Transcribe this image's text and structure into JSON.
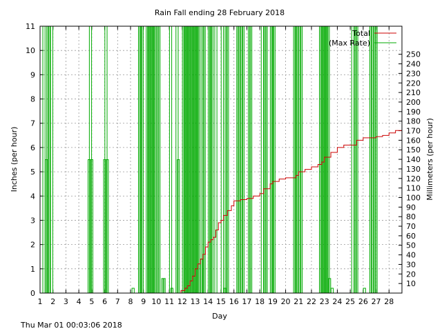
{
  "chart_data": {
    "type": "line",
    "title": "Rain Fall ending 28 February 2018",
    "xlabel": "Day",
    "ylabel": "Inches (per hour)",
    "y2label": "Millimeters (per hour)",
    "xlim": [
      1,
      29
    ],
    "ylim": [
      0,
      11
    ],
    "y2lim": [
      0,
      279.4
    ],
    "x_ticks": [
      1,
      2,
      3,
      4,
      5,
      6,
      7,
      8,
      9,
      10,
      11,
      12,
      13,
      14,
      15,
      16,
      17,
      18,
      19,
      20,
      21,
      22,
      23,
      24,
      25,
      26,
      27,
      28
    ],
    "y_ticks": [
      0,
      1,
      2,
      3,
      4,
      5,
      6,
      7,
      8,
      9,
      10,
      11
    ],
    "y2_ticks": [
      10,
      20,
      30,
      40,
      50,
      60,
      70,
      80,
      90,
      100,
      110,
      120,
      130,
      140,
      150,
      160,
      170,
      180,
      190,
      200,
      210,
      220,
      230,
      240,
      250
    ],
    "grid": true,
    "legend_position": "top-right",
    "series": [
      {
        "name": "Total",
        "color": "#cc0000",
        "x": [
          1,
          11.7,
          11.9,
          12.2,
          12.4,
          12.6,
          12.8,
          13.0,
          13.2,
          13.4,
          13.6,
          13.8,
          14.0,
          14.2,
          14.4,
          14.6,
          14.8,
          15.0,
          15.2,
          15.5,
          15.8,
          16.0,
          16.5,
          17.0,
          17.5,
          18.0,
          18.3,
          18.8,
          19.0,
          19.5,
          20.0,
          20.8,
          21.0,
          21.5,
          22.0,
          22.5,
          22.8,
          23.0,
          23.5,
          24.0,
          24.5,
          25.0,
          25.5,
          26.0,
          26.5,
          27.0,
          27.5,
          28.0,
          28.5,
          29.0
        ],
        "values": [
          0,
          0,
          0.1,
          0.2,
          0.3,
          0.5,
          0.7,
          1.0,
          1.2,
          1.4,
          1.6,
          1.9,
          2.1,
          2.2,
          2.3,
          2.6,
          2.9,
          3.0,
          3.2,
          3.4,
          3.6,
          3.8,
          3.85,
          3.9,
          4.0,
          4.1,
          4.3,
          4.5,
          4.6,
          4.7,
          4.75,
          4.85,
          5.0,
          5.1,
          5.2,
          5.3,
          5.4,
          5.6,
          5.8,
          6.0,
          6.1,
          6.1,
          6.3,
          6.4,
          6.4,
          6.45,
          6.5,
          6.6,
          6.7,
          6.8
        ]
      },
      {
        "name": "(Max Rate)",
        "color": "#00aa00",
        "x": [
          1.3,
          1.5,
          1.6,
          1.7,
          1.9,
          4.8,
          4.9,
          5.0,
          6.0,
          6.1,
          6.2,
          8.2,
          8.7,
          8.8,
          8.9,
          9.3,
          9.4,
          9.5,
          9.6,
          9.7,
          9.8,
          9.9,
          10.1,
          10.2,
          10.5,
          10.6,
          11.1,
          11.2,
          11.6,
          11.7,
          12.1,
          12.2,
          12.3,
          12.4,
          12.5,
          12.6,
          12.7,
          12.8,
          12.9,
          13.0,
          13.1,
          13.2,
          13.3,
          13.5,
          13.6,
          13.7,
          14.1,
          14.2,
          14.3,
          14.6,
          15.1,
          15.3,
          15.4,
          15.5,
          16.3,
          16.4,
          16.6,
          16.7,
          17.2,
          17.3,
          18.2,
          18.4,
          18.5,
          18.9,
          19.0,
          19.1,
          20.7,
          20.8,
          20.9,
          21.1,
          21.2,
          22.7,
          22.8,
          22.9,
          23.0,
          23.1,
          23.2,
          23.3,
          23.4,
          23.6,
          25.2,
          25.4,
          25.5,
          26.1,
          26.6,
          26.7,
          26.9,
          27.0
        ],
        "values": [
          11,
          5.5,
          11,
          11,
          11,
          5.5,
          11,
          5.5,
          5.5,
          11,
          5.5,
          0.2,
          11,
          11,
          11,
          11,
          11,
          11,
          11,
          11,
          11,
          11,
          11,
          11,
          0.6,
          0.6,
          11,
          0.2,
          11,
          5.5,
          11,
          11,
          11,
          11,
          11,
          11,
          11,
          11,
          11,
          11,
          11,
          11,
          11,
          1.4,
          11,
          11,
          11,
          11,
          11,
          11,
          11,
          0.2,
          11,
          11,
          11,
          11,
          11,
          11,
          11,
          11,
          11,
          11,
          11,
          11,
          11,
          11,
          11,
          11,
          11,
          11,
          11,
          11,
          11,
          11,
          11,
          11,
          11,
          11,
          0.6,
          0.2,
          11,
          11,
          11,
          0.2,
          11,
          11,
          11,
          11
        ]
      }
    ]
  },
  "timestamp": "Thu Mar 01 00:03:06 2018"
}
